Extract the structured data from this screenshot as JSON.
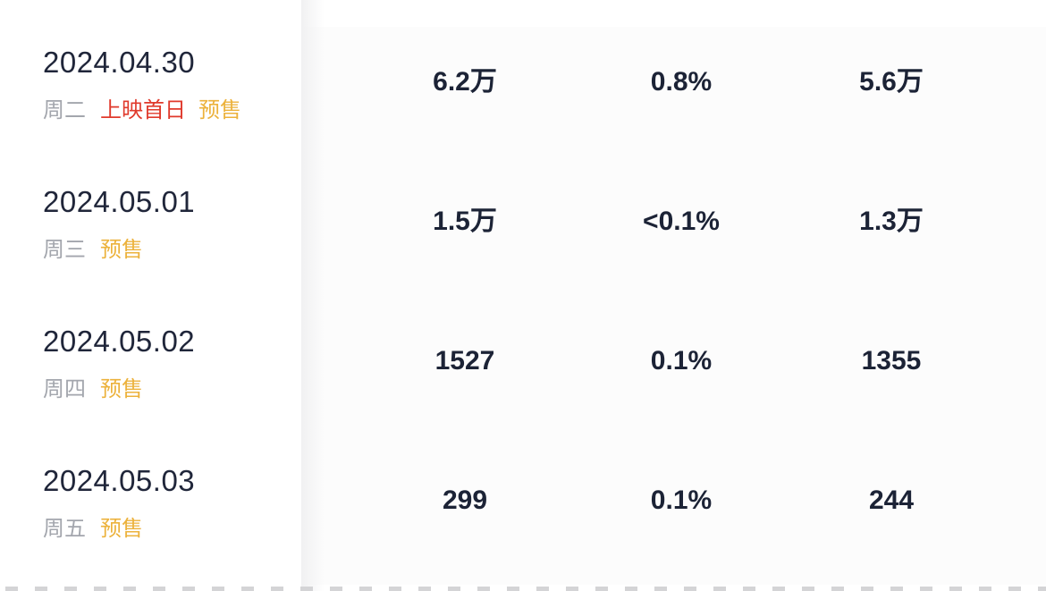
{
  "colors": {
    "text_dark": "#20263a",
    "value_dark": "#1c2336",
    "weekday_gray": "#a3a6ad",
    "tag_red": "#e03a2c",
    "tag_gold": "#ecb23c",
    "divider_shadow": "#f1f1f2",
    "dash_border": "#d4d4d6",
    "background": "#ffffff"
  },
  "table": {
    "rows": [
      {
        "date": "2024.04.30",
        "weekday": "周二",
        "tags": [
          {
            "name": "release-first-day",
            "label": "上映首日",
            "color": "red"
          },
          {
            "name": "presale",
            "label": "预售",
            "color": "gold"
          }
        ],
        "values": [
          "6.2万",
          "0.8%",
          "5.6万"
        ]
      },
      {
        "date": "2024.05.01",
        "weekday": "周三",
        "tags": [
          {
            "name": "presale",
            "label": "预售",
            "color": "gold"
          }
        ],
        "values": [
          "1.5万",
          "<0.1%",
          "1.3万"
        ]
      },
      {
        "date": "2024.05.02",
        "weekday": "周四",
        "tags": [
          {
            "name": "presale",
            "label": "预售",
            "color": "gold"
          }
        ],
        "values": [
          "1527",
          "0.1%",
          "1355"
        ]
      },
      {
        "date": "2024.05.03",
        "weekday": "周五",
        "tags": [
          {
            "name": "presale",
            "label": "预售",
            "color": "gold"
          }
        ],
        "values": [
          "299",
          "0.1%",
          "244"
        ]
      }
    ]
  }
}
